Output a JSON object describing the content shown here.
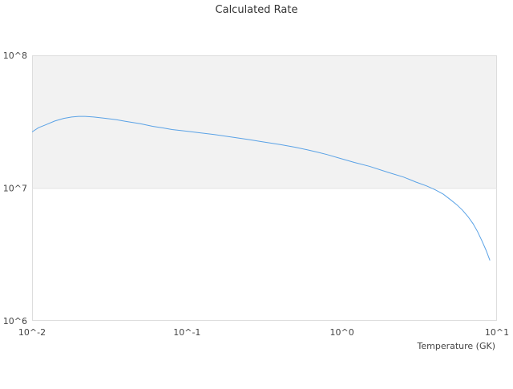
{
  "chart_data": {
    "type": "line",
    "title": "Calculated Rate",
    "xlabel": "Temperature (GK)",
    "ylabel": "",
    "x_scale": "log",
    "y_scale": "log",
    "xlim": [
      0.01,
      10
    ],
    "ylim": [
      1000000,
      100000000
    ],
    "x_ticks": [
      "10^-2",
      "10^-1",
      "10^0",
      "10^1"
    ],
    "y_ticks": [
      "10^6",
      "10^7",
      "10^8"
    ],
    "grid": false,
    "legend": "none",
    "colors": {
      "line": "#5aa2e6",
      "shaded_band": "#f2f2f2",
      "plot_border": "#dddddd"
    },
    "shaded_band_y": [
      10000000,
      100000000
    ],
    "series": [
      {
        "x": [
          0.01,
          0.011,
          0.012,
          0.014,
          0.016,
          0.018,
          0.02,
          0.022,
          0.025,
          0.03,
          0.035,
          0.04,
          0.05,
          0.06,
          0.07,
          0.08,
          0.1,
          0.12,
          0.15,
          0.2,
          0.25,
          0.3,
          0.4,
          0.5,
          0.6,
          0.7,
          0.8,
          1.0,
          1.2,
          1.5,
          2.0,
          2.5,
          3.0,
          3.5,
          4.0,
          4.5,
          5.0,
          5.5,
          6.0,
          6.5,
          7.0,
          7.5,
          8.0,
          8.5,
          9.0
        ],
        "y": [
          26500000,
          28500000,
          29700000,
          32000000,
          33500000,
          34300000,
          34700000,
          34700000,
          34300000,
          33500000,
          32700000,
          31800000,
          30500000,
          29200000,
          28400000,
          27600000,
          26800000,
          26100000,
          25300000,
          24100000,
          23200000,
          22400000,
          21300000,
          20300000,
          19400000,
          18600000,
          17900000,
          16600000,
          15600000,
          14600000,
          13100000,
          12100000,
          11100000,
          10400000,
          9700000,
          9000000,
          8200000,
          7500000,
          6800000,
          6100000,
          5400000,
          4700000,
          4000000,
          3400000,
          2850000
        ]
      }
    ]
  }
}
